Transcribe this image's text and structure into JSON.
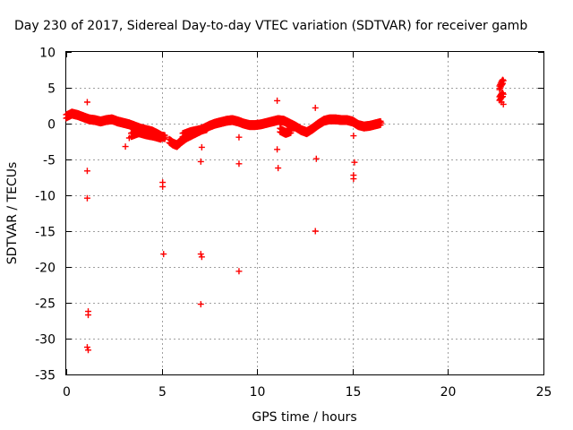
{
  "chart_data": {
    "type": "scatter",
    "title": "Day 230 of 2017, Sidereal Day-to-day VTEC variation (SDTVAR) for receiver gamb",
    "xlabel": "GPS time / hours",
    "ylabel": "SDTVAR / TECUs",
    "xlim": [
      0,
      25
    ],
    "ylim": [
      -35,
      10
    ],
    "xticks": [
      0,
      5,
      10,
      15,
      20,
      25
    ],
    "yticks": [
      -35,
      -30,
      -25,
      -20,
      -15,
      -10,
      -5,
      0,
      5,
      10
    ],
    "grid": true,
    "marker": "+",
    "color": "#ff0000",
    "series": [
      {
        "name": "SDTVAR",
        "dense_tracks": [
          [
            [
              0.0,
              1.0
            ],
            [
              0.3,
              1.4
            ],
            [
              0.6,
              1.2
            ],
            [
              0.9,
              0.9
            ],
            [
              1.2,
              0.6
            ],
            [
              1.5,
              0.5
            ],
            [
              1.8,
              0.3
            ],
            [
              2.1,
              0.5
            ],
            [
              2.4,
              0.6
            ],
            [
              2.7,
              0.3
            ],
            [
              3.0,
              0.1
            ],
            [
              3.3,
              -0.1
            ],
            [
              3.6,
              -0.4
            ],
            [
              3.9,
              -0.7
            ],
            [
              4.2,
              -0.9
            ],
            [
              4.5,
              -1.1
            ],
            [
              4.8,
              -1.5
            ],
            [
              5.0,
              -1.8
            ],
            [
              5.2,
              -1.9
            ]
          ],
          [
            [
              3.4,
              -1.6
            ],
            [
              3.8,
              -1.2
            ],
            [
              4.2,
              -1.5
            ],
            [
              4.6,
              -1.7
            ],
            [
              5.0,
              -2.0
            ]
          ],
          [
            [
              5.4,
              -2.4
            ],
            [
              5.6,
              -2.8
            ],
            [
              5.8,
              -3.0
            ],
            [
              6.0,
              -2.5
            ],
            [
              6.3,
              -1.9
            ],
            [
              6.6,
              -1.5
            ],
            [
              6.9,
              -1.1
            ],
            [
              7.2,
              -0.7
            ],
            [
              7.5,
              -0.3
            ],
            [
              7.8,
              0.0
            ],
            [
              8.1,
              0.2
            ],
            [
              8.4,
              0.4
            ],
            [
              8.7,
              0.5
            ],
            [
              9.0,
              0.3
            ],
            [
              9.3,
              0.0
            ],
            [
              9.6,
              -0.2
            ],
            [
              9.9,
              -0.2
            ],
            [
              10.2,
              -0.1
            ],
            [
              10.5,
              0.1
            ],
            [
              10.8,
              0.3
            ],
            [
              11.1,
              0.5
            ],
            [
              11.4,
              0.4
            ],
            [
              11.7,
              0.0
            ],
            [
              12.0,
              -0.4
            ],
            [
              12.3,
              -0.9
            ],
            [
              12.6,
              -1.2
            ],
            [
              12.9,
              -0.7
            ],
            [
              13.2,
              -0.1
            ],
            [
              13.5,
              0.4
            ],
            [
              13.8,
              0.6
            ],
            [
              14.1,
              0.6
            ],
            [
              14.4,
              0.5
            ],
            [
              14.7,
              0.5
            ],
            [
              15.0,
              0.3
            ],
            [
              15.3,
              -0.2
            ],
            [
              15.6,
              -0.4
            ],
            [
              15.9,
              -0.3
            ],
            [
              16.2,
              -0.1
            ],
            [
              16.5,
              0.1
            ]
          ],
          [
            [
              6.1,
              -1.6
            ],
            [
              6.5,
              -1.2
            ],
            [
              7.0,
              -0.9
            ],
            [
              7.4,
              -0.6
            ]
          ],
          [
            [
              11.2,
              -0.9
            ],
            [
              11.5,
              -1.3
            ],
            [
              11.8,
              -1.0
            ]
          ],
          [
            [
              22.7,
              5.0
            ],
            [
              22.8,
              5.6
            ],
            [
              22.9,
              6.0
            ]
          ],
          [
            [
              22.7,
              3.5
            ],
            [
              22.8,
              3.9
            ],
            [
              22.9,
              4.1
            ]
          ]
        ],
        "points": [
          [
            1.1,
            3.0
          ],
          [
            1.1,
            -6.6
          ],
          [
            1.1,
            -10.4
          ],
          [
            1.15,
            -26.2
          ],
          [
            1.15,
            -26.7
          ],
          [
            1.1,
            -31.2
          ],
          [
            1.15,
            -31.6
          ],
          [
            3.1,
            -3.2
          ],
          [
            3.3,
            -2.0
          ],
          [
            5.05,
            -8.2
          ],
          [
            5.05,
            -8.8
          ],
          [
            5.1,
            -18.2
          ],
          [
            7.1,
            -3.3
          ],
          [
            7.05,
            -5.3
          ],
          [
            7.05,
            -18.2
          ],
          [
            7.1,
            -18.6
          ],
          [
            7.05,
            -25.2
          ],
          [
            9.05,
            -1.9
          ],
          [
            9.05,
            -5.6
          ],
          [
            9.05,
            -20.6
          ],
          [
            11.05,
            3.2
          ],
          [
            11.05,
            -3.6
          ],
          [
            11.1,
            -6.2
          ],
          [
            13.05,
            2.2
          ],
          [
            13.1,
            -4.9
          ],
          [
            13.05,
            -15.0
          ],
          [
            15.05,
            -1.7
          ],
          [
            15.1,
            -5.4
          ],
          [
            15.05,
            -7.2
          ],
          [
            15.05,
            -7.7
          ],
          [
            22.8,
            3.0
          ],
          [
            22.9,
            2.7
          ]
        ]
      }
    ]
  }
}
